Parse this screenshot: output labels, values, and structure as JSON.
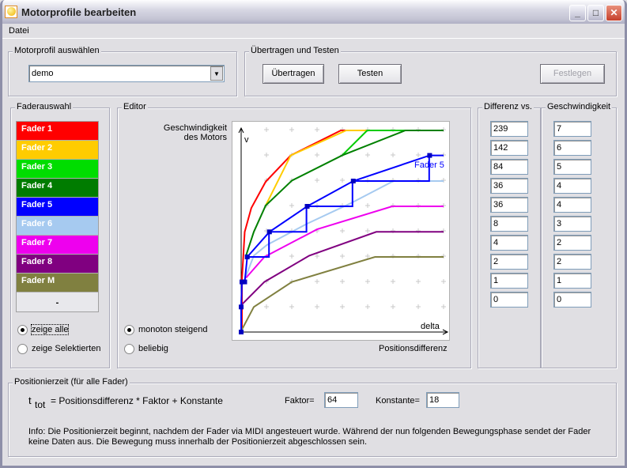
{
  "window": {
    "title": "Motorprofile bearbeiten",
    "minimize": "_",
    "maximize": "□",
    "close": "✕"
  },
  "menu": {
    "datei": "Datei"
  },
  "profile_group": {
    "label": "Motorprofil auswählen",
    "selected": "demo"
  },
  "transfer_group": {
    "label": "Übertragen und Testen",
    "transfer": "Übertragen",
    "test": "Testen",
    "commit": "Festlegen"
  },
  "fader_group": {
    "label": "Faderauswahl",
    "faders": [
      {
        "label": "Fader 1",
        "color": "#ff0000"
      },
      {
        "label": "Fader 2",
        "color": "#ffcc00"
      },
      {
        "label": "Fader 3",
        "color": "#00dd00"
      },
      {
        "label": "Fader 4",
        "color": "#007c00"
      },
      {
        "label": "Fader 5",
        "color": "#0000ff"
      },
      {
        "label": "Fader 6",
        "color": "#a6caf0"
      },
      {
        "label": "Fader 7",
        "color": "#ee00ee"
      },
      {
        "label": "Fader 8",
        "color": "#800080"
      },
      {
        "label": "Fader M",
        "color": "#808040"
      }
    ],
    "empty": "-",
    "show_all": "zeige alle",
    "show_selected": "zeige Selektierten"
  },
  "editor": {
    "label": "Editor",
    "ylabel1": "Geschwindigkeit",
    "ylabel2": "des Motors",
    "xlabel": "Positionsdifferenz",
    "monotone": "monoton steigend",
    "arbitrary": "beliebig"
  },
  "chart_data": {
    "type": "line",
    "x_axis_label": "delta",
    "y_axis_label": "v",
    "xlim": [
      0,
      8.3
    ],
    "ylim": [
      0,
      8.3
    ],
    "grid": "crosses",
    "annotation": "Fader 5",
    "series": [
      {
        "name": "Fader 1",
        "color": "#ff0000",
        "points": [
          [
            0.03,
            0
          ],
          [
            0.03,
            2.08
          ],
          [
            0.14,
            3.96
          ],
          [
            0.4,
            4.9
          ],
          [
            0.97,
            5.94
          ],
          [
            1.96,
            6.98
          ],
          [
            3.94,
            7.97
          ],
          [
            4.15,
            7.97
          ]
        ]
      },
      {
        "name": "Fader 2",
        "color": "#ffcc00",
        "points": [
          [
            0.97,
            5
          ],
          [
            1.96,
            6.98
          ],
          [
            4.15,
            7.97
          ],
          [
            4.98,
            7.97
          ]
        ]
      },
      {
        "name": "Fader 3",
        "color": "#00cc00",
        "points": [
          [
            3.99,
            6.98
          ],
          [
            4.98,
            7.97
          ],
          [
            6.49,
            7.97
          ]
        ]
      },
      {
        "name": "Fader 4",
        "color": "#008000",
        "points": [
          [
            0.19,
            3.02
          ],
          [
            0.5,
            3.96
          ],
          [
            0.97,
            5
          ],
          [
            2.01,
            5.99
          ],
          [
            3.99,
            6.98
          ],
          [
            6.49,
            7.97
          ],
          [
            8,
            7.97
          ]
        ]
      },
      {
        "name": "Fader 6",
        "color": "#a6caf0",
        "points": [
          [
            0.14,
            2.08
          ],
          [
            0.5,
            3.02
          ],
          [
            1.02,
            3.44
          ],
          [
            2.58,
            4.27
          ],
          [
            4.35,
            5.1
          ],
          [
            6.02,
            5.97
          ],
          [
            8,
            5.97
          ]
        ]
      },
      {
        "name": "Fader 7",
        "color": "#ee00ee",
        "points": [
          [
            0.19,
            2.14
          ],
          [
            0.92,
            2.97
          ],
          [
            3,
            4.06
          ],
          [
            5.97,
            4.97
          ],
          [
            8,
            4.97
          ]
        ]
      },
      {
        "name": "Fader 8",
        "color": "#800080",
        "points": [
          [
            0.03,
            1.09
          ],
          [
            0.92,
            1.98
          ],
          [
            2.69,
            3.02
          ],
          [
            5.34,
            3.96
          ],
          [
            8,
            3.96
          ]
        ]
      },
      {
        "name": "Fader M",
        "color": "#808040",
        "points": [
          [
            0.03,
            0.1
          ],
          [
            0.5,
            0.99
          ],
          [
            2.01,
            1.98
          ],
          [
            5.29,
            2.97
          ],
          [
            8,
            2.97
          ]
        ]
      },
      {
        "name": "Fader 5",
        "color": "#0000ff",
        "selected": true,
        "points": [
          [
            0,
            0
          ],
          [
            0,
            0.99
          ],
          [
            0.03,
            1.98
          ],
          [
            0.14,
            1.98
          ],
          [
            0.24,
            2.97
          ],
          [
            1.12,
            3.96
          ],
          [
            2.61,
            4.97
          ],
          [
            4.43,
            5.97
          ],
          [
            7.45,
            6.98
          ],
          [
            8,
            6.98
          ]
        ],
        "steps": [
          [
            0.24,
            2.97
          ],
          [
            1.1,
            2.97
          ],
          [
            1.1,
            3.96
          ],
          [
            2.58,
            3.96
          ],
          [
            2.58,
            4.97
          ],
          [
            4.4,
            4.97
          ],
          [
            4.4,
            5.97
          ],
          [
            7.43,
            5.97
          ],
          [
            7.43,
            6.98
          ]
        ]
      }
    ]
  },
  "table": {
    "diff_header": "Differenz vs.",
    "speed_header": "Geschwindigkeit",
    "diff": [
      "239",
      "142",
      "84",
      "36",
      "36",
      "8",
      "4",
      "2",
      "1",
      "0"
    ],
    "speed": [
      "7",
      "6",
      "5",
      "4",
      "4",
      "3",
      "2",
      "2",
      "1",
      "0"
    ]
  },
  "timing": {
    "label": "Positionierzeit (für alle Fader)",
    "t": "t",
    "tot": "tot",
    "formula": "= Positionsdifferenz * Faktor + Konstante",
    "factor_label": "Faktor=",
    "factor": "64",
    "const_label": "Konstante=",
    "const": "18",
    "info1": "Info: Die Positionierzeit beginnt, nachdem der Fader via MIDI angesteuert wurde. Während der nun folgenden Bewegungsphase sendet der Fader",
    "info2": "keine Daten aus. Die Bewegung muss innerhalb der Positionierzeit abgeschlossen sein."
  }
}
